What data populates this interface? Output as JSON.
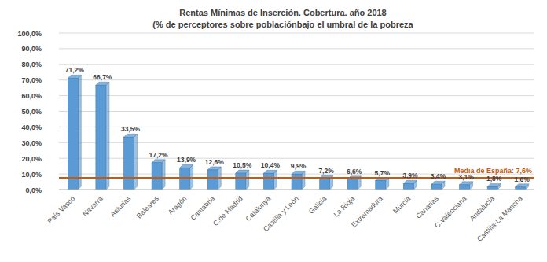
{
  "chart_data": {
    "type": "bar",
    "title": "Rentas Mínimas de Inserción. Cobertura. año 2018",
    "subtitle": "(% de perceptores sobre poblaciónbajo el umbral de la pobreza",
    "categories": [
      "País Vasco",
      "Navarra",
      "Asturias",
      "Baleares",
      "Aragón",
      "Cantabria",
      "C.de Madrid",
      "Catalunya",
      "Castilla y León",
      "Galicia",
      "La Rioja",
      "Extremadura",
      "Murcia",
      "Canarias",
      "C.Valenciana",
      "Andalucía",
      "Castilla-La Mancha"
    ],
    "values": [
      71.2,
      66.7,
      33.5,
      17.2,
      13.9,
      12.6,
      10.5,
      10.4,
      9.9,
      7.2,
      6.6,
      5.7,
      3.9,
      3.4,
      3.1,
      1.8,
      1.6
    ],
    "value_labels": [
      "71,2%",
      "66,7%",
      "33,5%",
      "17,2%",
      "13,9%",
      "12,6%",
      "10,5%",
      "10,4%",
      "9,9%",
      "7,2%",
      "6,6%",
      "5,7%",
      "3,9%",
      "3,4%",
      "3,1%",
      "1,8%",
      "1,6%"
    ],
    "color": "#5b9bd5",
    "ylim": [
      0,
      100
    ],
    "yticks": [
      {
        "value": 0,
        "label": "0,0%"
      },
      {
        "value": 10,
        "label": "10,0%"
      },
      {
        "value": 20,
        "label": "20,0%"
      },
      {
        "value": 30,
        "label": "30,0%"
      },
      {
        "value": 40,
        "label": "40,0%"
      },
      {
        "value": 50,
        "label": "50,0%"
      },
      {
        "value": 60,
        "label": "60,0%"
      },
      {
        "value": 70,
        "label": "70,0%"
      },
      {
        "value": 80,
        "label": "80,0%"
      },
      {
        "value": 90,
        "label": "90,0%"
      },
      {
        "value": 100,
        "label": "100,0%"
      }
    ],
    "grid": true,
    "data_labels": true,
    "reference_line": {
      "value": 7.6,
      "label": "Media de España: 7,6%",
      "color": "#c55a11"
    }
  }
}
